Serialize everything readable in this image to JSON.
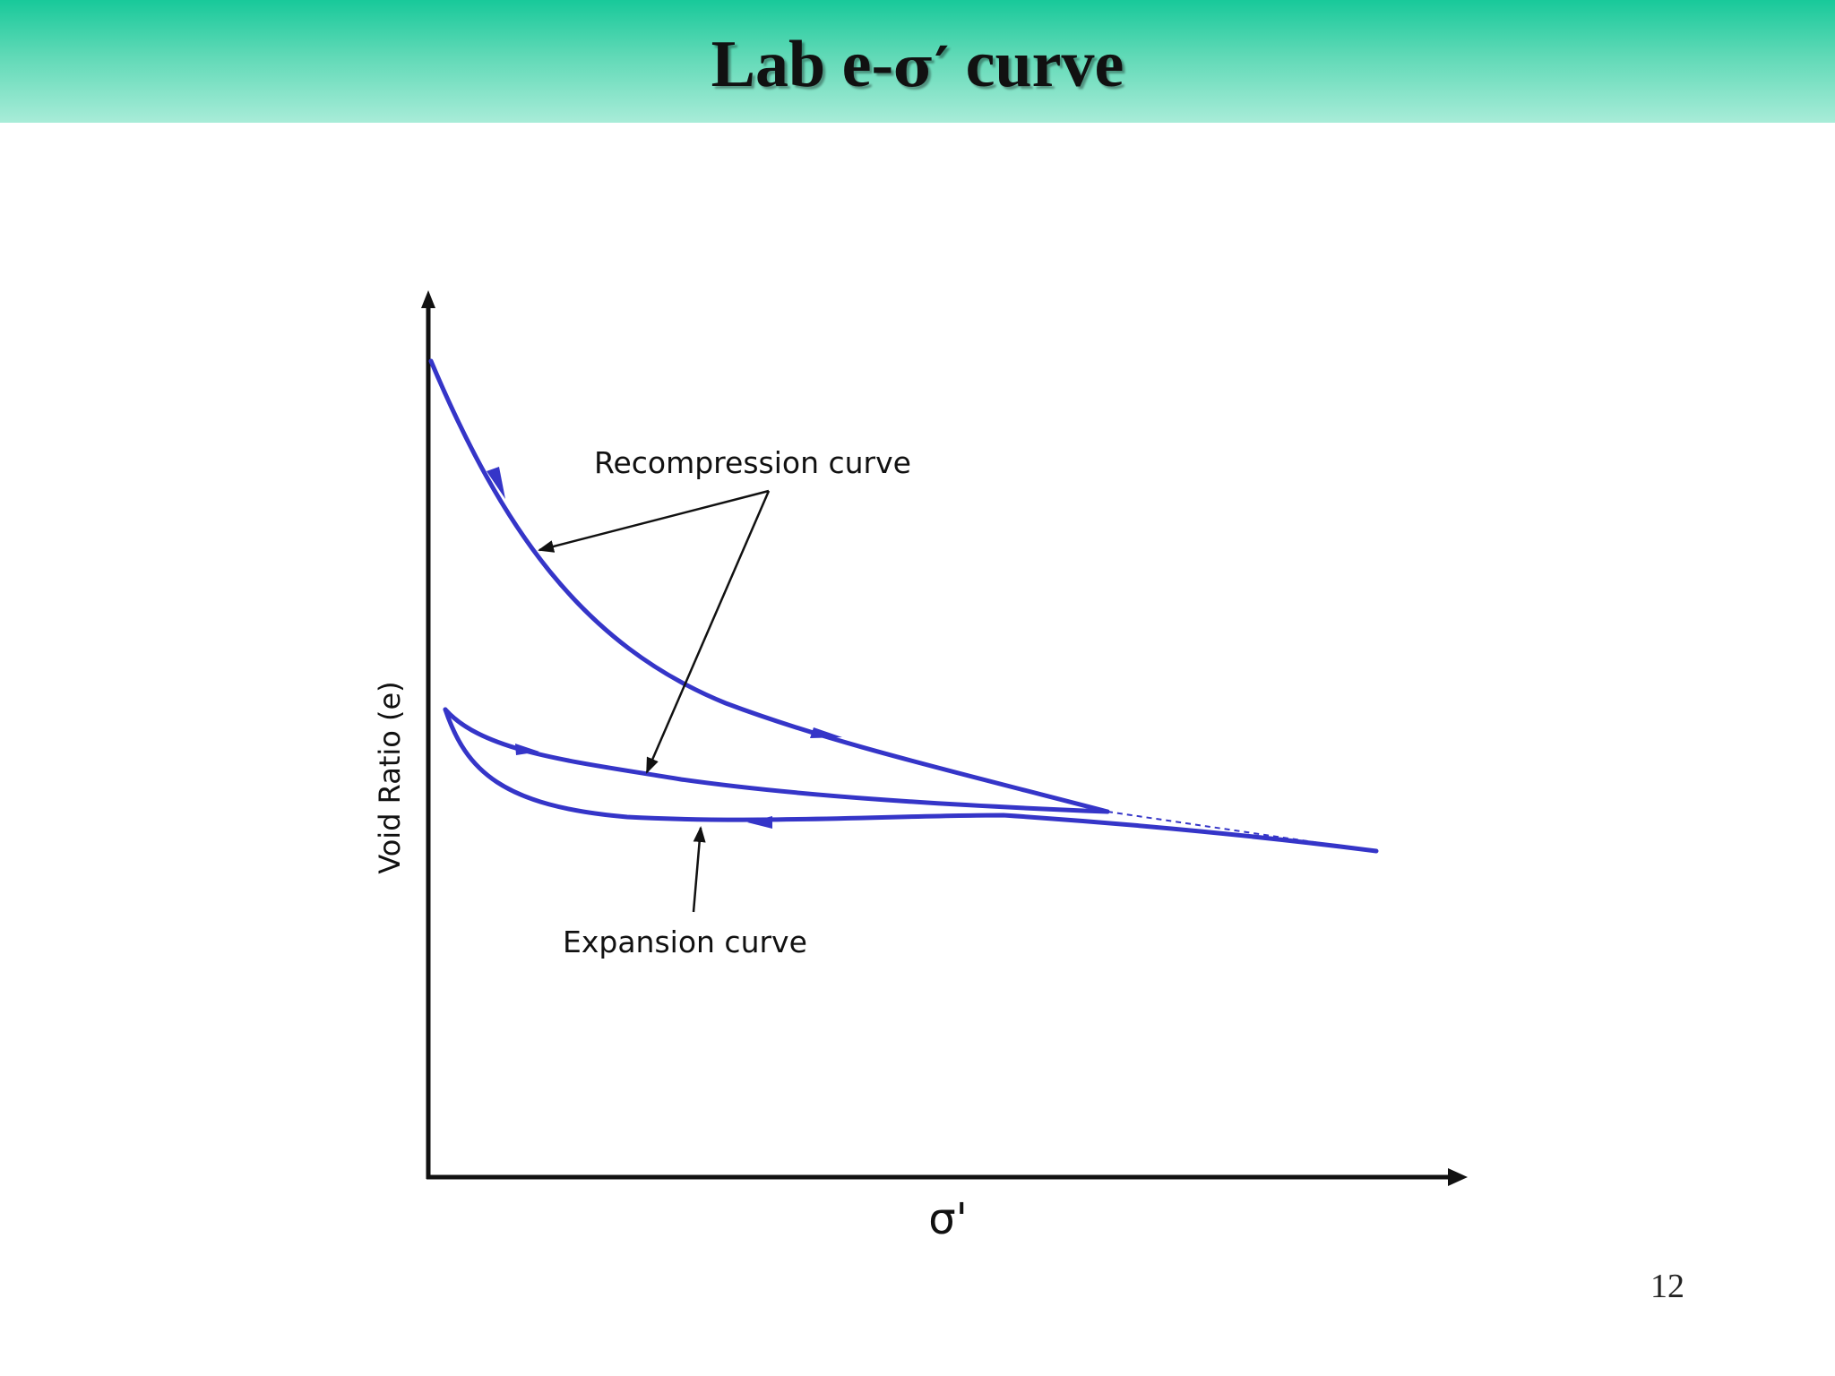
{
  "slide": {
    "title_prefix": "Lab e-",
    "title_sigma": "σ′",
    "title_suffix": " curve",
    "page_number": "12"
  },
  "diagram": {
    "y_axis_label": "Void Ratio (e)",
    "x_axis_label": "σ'",
    "annotations": {
      "recompression": "Recompression curve",
      "expansion": "Expansion curve"
    },
    "colors": {
      "curve": "#3535c8",
      "axis": "#111111",
      "header_top": "#18c99a",
      "header_bottom": "#a8ecd8"
    }
  }
}
